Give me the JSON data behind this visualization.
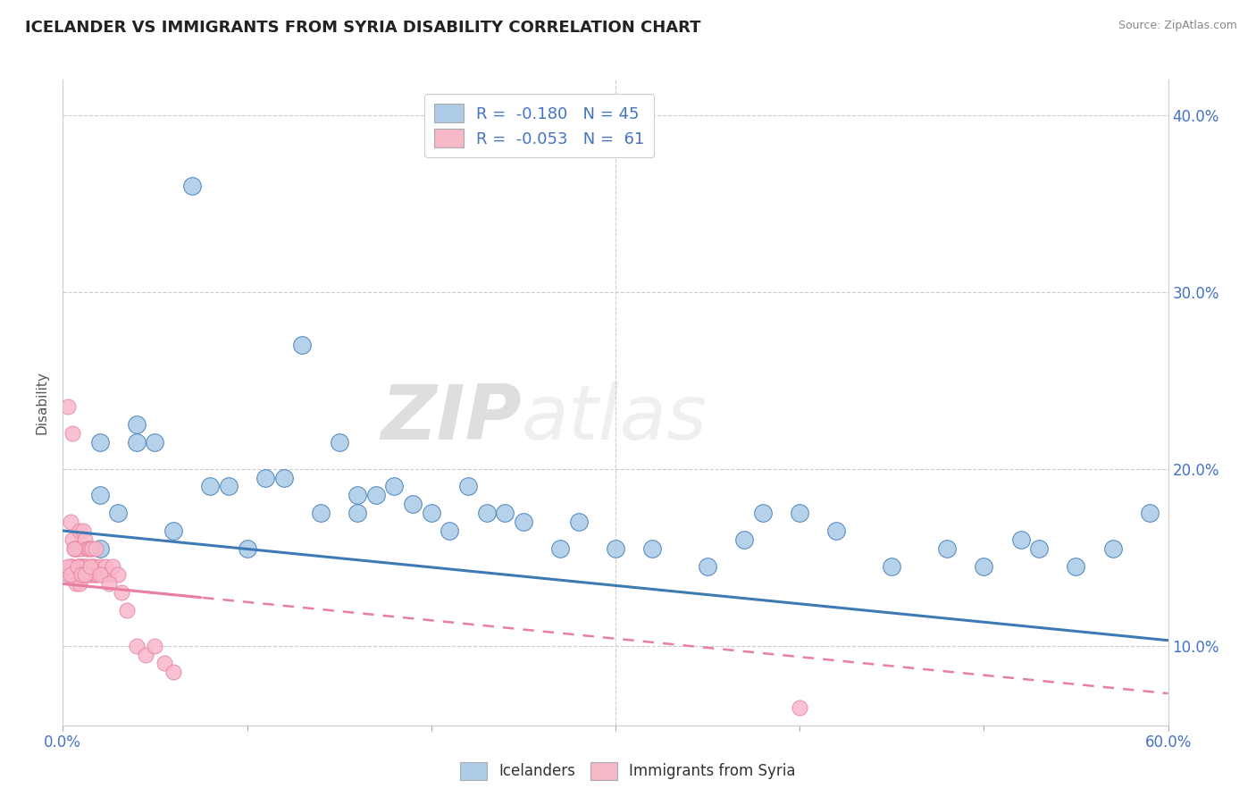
{
  "title": "ICELANDER VS IMMIGRANTS FROM SYRIA DISABILITY CORRELATION CHART",
  "source": "Source: ZipAtlas.com",
  "ylabel": "Disability",
  "legend_bottom": [
    "Icelanders",
    "Immigrants from Syria"
  ],
  "r_icelander": -0.18,
  "n_icelander": 45,
  "r_syria": -0.053,
  "n_syria": 61,
  "watermark_zip": "ZIP",
  "watermark_atlas": "atlas",
  "blue_color": "#aecce8",
  "pink_color": "#f7b8c8",
  "blue_line_color": "#3d7ab5",
  "pink_line_color": "#e87fa0",
  "icelander_x": [
    0.02,
    0.02,
    0.04,
    0.04,
    0.05,
    0.07,
    0.08,
    0.09,
    0.1,
    0.11,
    0.12,
    0.13,
    0.15,
    0.16,
    0.17,
    0.18,
    0.19,
    0.2,
    0.22,
    0.23,
    0.25,
    0.27,
    0.28,
    0.3,
    0.35,
    0.37,
    0.38,
    0.4,
    0.45,
    0.5,
    0.52,
    0.55,
    0.57,
    0.59,
    0.02,
    0.03,
    0.06,
    0.14,
    0.16,
    0.21,
    0.24,
    0.32,
    0.42,
    0.48,
    0.53
  ],
  "icelander_y": [
    0.215,
    0.185,
    0.215,
    0.225,
    0.215,
    0.36,
    0.19,
    0.19,
    0.155,
    0.195,
    0.195,
    0.27,
    0.215,
    0.185,
    0.185,
    0.19,
    0.18,
    0.175,
    0.19,
    0.175,
    0.17,
    0.155,
    0.17,
    0.155,
    0.145,
    0.16,
    0.175,
    0.175,
    0.145,
    0.145,
    0.16,
    0.145,
    0.155,
    0.175,
    0.155,
    0.175,
    0.165,
    0.175,
    0.175,
    0.165,
    0.175,
    0.155,
    0.165,
    0.155,
    0.155
  ],
  "syria_x": [
    0.003,
    0.003,
    0.004,
    0.004,
    0.005,
    0.005,
    0.005,
    0.006,
    0.006,
    0.007,
    0.007,
    0.008,
    0.008,
    0.009,
    0.009,
    0.009,
    0.01,
    0.01,
    0.01,
    0.011,
    0.011,
    0.012,
    0.012,
    0.012,
    0.013,
    0.013,
    0.014,
    0.014,
    0.015,
    0.015,
    0.016,
    0.016,
    0.017,
    0.017,
    0.018,
    0.018,
    0.019,
    0.02,
    0.021,
    0.022,
    0.023,
    0.025,
    0.027,
    0.03,
    0.032,
    0.035,
    0.04,
    0.045,
    0.05,
    0.055,
    0.06,
    0.003,
    0.004,
    0.006,
    0.008,
    0.01,
    0.012,
    0.015,
    0.02,
    0.025,
    0.4
  ],
  "syria_y": [
    0.14,
    0.235,
    0.145,
    0.17,
    0.145,
    0.16,
    0.22,
    0.14,
    0.155,
    0.135,
    0.155,
    0.145,
    0.155,
    0.135,
    0.145,
    0.165,
    0.14,
    0.155,
    0.145,
    0.145,
    0.165,
    0.14,
    0.145,
    0.16,
    0.145,
    0.155,
    0.14,
    0.155,
    0.14,
    0.155,
    0.145,
    0.155,
    0.145,
    0.14,
    0.14,
    0.155,
    0.14,
    0.145,
    0.14,
    0.14,
    0.145,
    0.14,
    0.145,
    0.14,
    0.13,
    0.12,
    0.1,
    0.095,
    0.1,
    0.09,
    0.085,
    0.145,
    0.14,
    0.155,
    0.145,
    0.14,
    0.14,
    0.145,
    0.14,
    0.135,
    0.065
  ],
  "xlim": [
    0.0,
    0.6
  ],
  "ylim": [
    0.055,
    0.42
  ],
  "yticks": [
    0.1,
    0.2,
    0.3,
    0.4
  ],
  "xtick_positions": [
    0.0,
    0.1,
    0.2,
    0.3,
    0.4,
    0.5,
    0.6
  ],
  "blue_line_x0": 0.0,
  "blue_line_x1": 0.6,
  "blue_line_y0": 0.165,
  "blue_line_y1": 0.103,
  "pink_line_x0": 0.0,
  "pink_line_x1": 0.6,
  "pink_line_y0": 0.135,
  "pink_line_y1": 0.073
}
